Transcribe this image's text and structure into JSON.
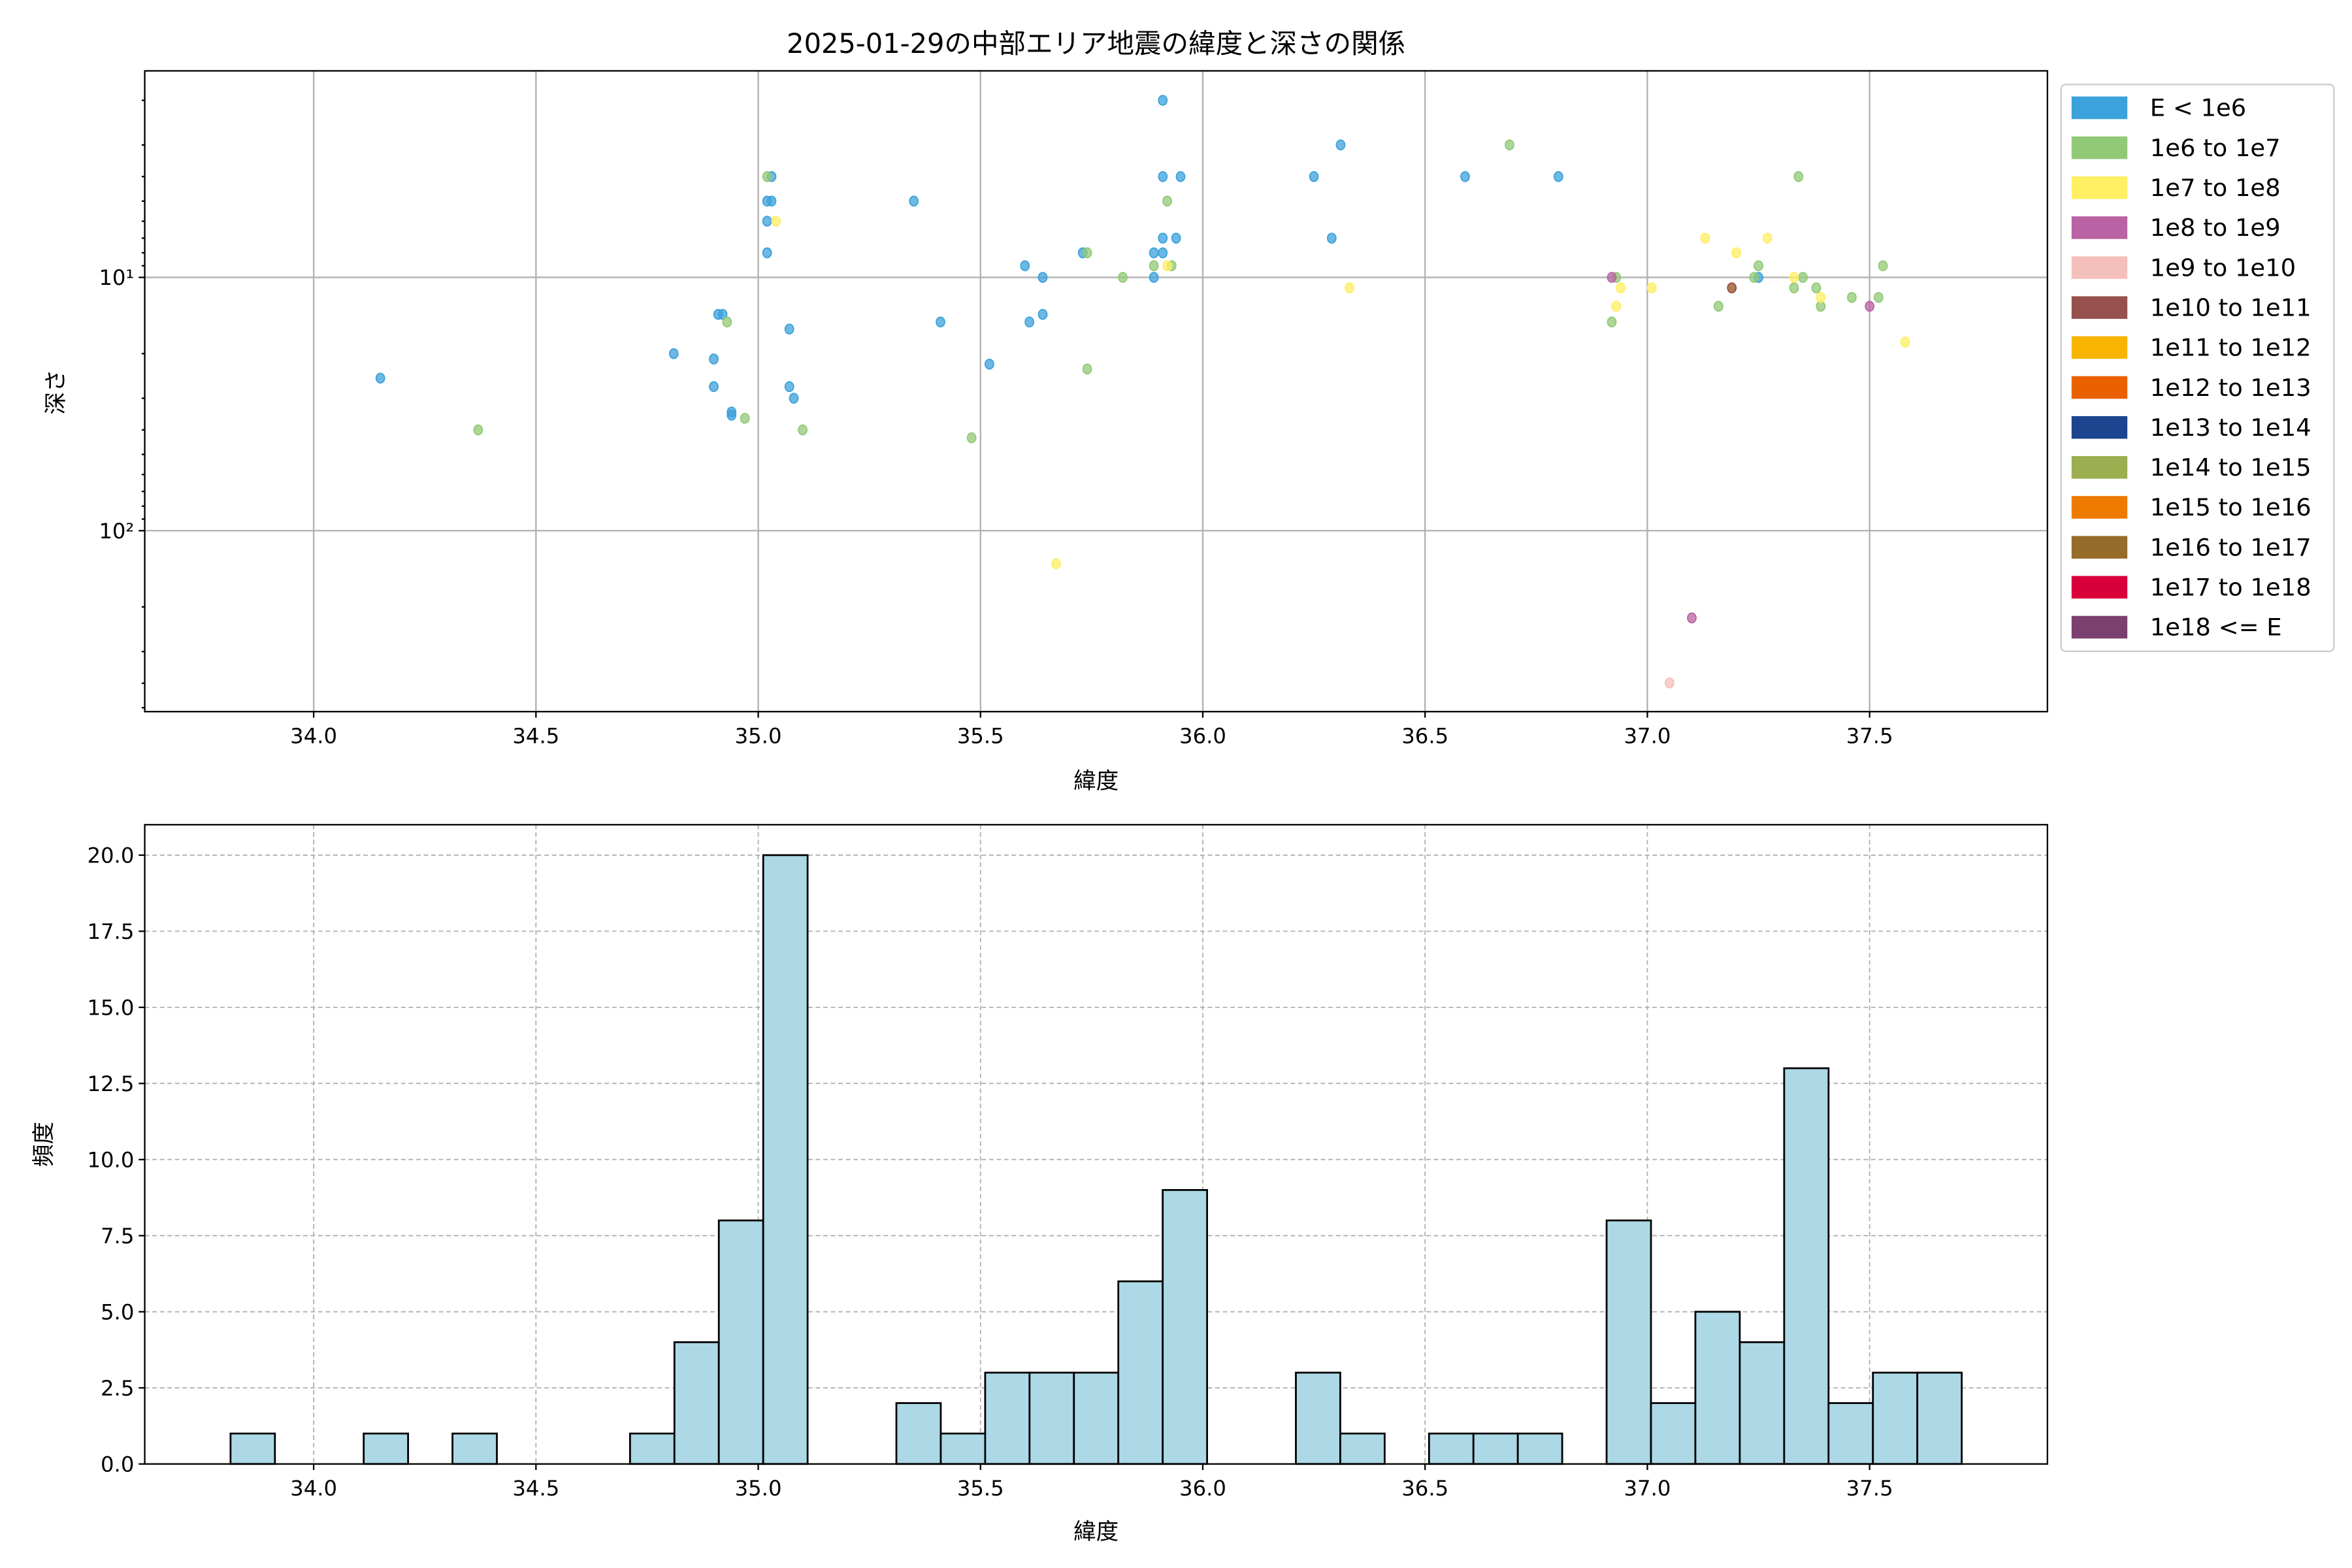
{
  "chart_data": [
    {
      "type": "scatter",
      "title": "2025-01-29の中部エリア地震の緯度と深さの関係",
      "xlabel": "緯度",
      "ylabel": "深さ",
      "xlim": [
        33.62,
        37.9
      ],
      "ylim": [
        518,
        1.53
      ],
      "yscale": "log",
      "y_inverted": true,
      "grid": true,
      "xticks": [
        "34.0",
        "34.5",
        "35.0",
        "35.5",
        "36.0",
        "36.5",
        "37.0",
        "37.5"
      ],
      "yticks": [
        {
          "value": 10,
          "label": "10¹"
        },
        {
          "value": 100,
          "label": "10²"
        }
      ],
      "legend_position": "outside-right",
      "legend": [
        {
          "label": "E < 1e6",
          "color": "#3CA2DB"
        },
        {
          "label": "1e6 to 1e7",
          "color": "#92C977"
        },
        {
          "label": "1e7 to 1e8",
          "color": "#FEEF63"
        },
        {
          "label": "1e8 to 1e9",
          "color": "#BA63A4"
        },
        {
          "label": "1e9 to 1e10",
          "color": "#F5C0BB"
        },
        {
          "label": "1e10 to 1e11",
          "color": "#96514C"
        },
        {
          "label": "1e11 to 1e12",
          "color": "#F7B500"
        },
        {
          "label": "1e12 to 1e13",
          "color": "#EA6200"
        },
        {
          "label": "1e13 to 1e14",
          "color": "#1B458F"
        },
        {
          "label": "1e14 to 1e15",
          "color": "#9BAE50"
        },
        {
          "label": "1e15 to 1e16",
          "color": "#EF7A00"
        },
        {
          "label": "1e16 to 1e17",
          "color": "#956C2A"
        },
        {
          "label": "1e17 to 1e18",
          "color": "#D9003A"
        },
        {
          "label": "1e18 <= E",
          "color": "#7B406F"
        }
      ],
      "series": [
        {
          "name": "E < 1e6",
          "points": [
            [
              34.15,
              25
            ],
            [
              34.81,
              20
            ],
            [
              34.9,
              21
            ],
            [
              34.9,
              27
            ],
            [
              34.91,
              14
            ],
            [
              34.92,
              14
            ],
            [
              34.94,
              34
            ],
            [
              34.94,
              35
            ],
            [
              35.07,
              16
            ],
            [
              35.07,
              27
            ],
            [
              35.08,
              30
            ],
            [
              35.03,
              4
            ],
            [
              35.02,
              5
            ],
            [
              35.03,
              5
            ],
            [
              35.02,
              6
            ],
            [
              35.02,
              8
            ],
            [
              35.35,
              5
            ],
            [
              35.41,
              15
            ],
            [
              35.52,
              22
            ],
            [
              35.6,
              9
            ],
            [
              35.61,
              15
            ],
            [
              35.64,
              10
            ],
            [
              35.64,
              14
            ],
            [
              35.73,
              8
            ],
            [
              35.89,
              10
            ],
            [
              35.89,
              8
            ],
            [
              35.91,
              8
            ],
            [
              35.91,
              7
            ],
            [
              35.94,
              7
            ],
            [
              35.91,
              4
            ],
            [
              35.91,
              2
            ],
            [
              35.95,
              4
            ],
            [
              36.25,
              4
            ],
            [
              36.31,
              3
            ],
            [
              36.29,
              7
            ],
            [
              36.59,
              4
            ],
            [
              36.8,
              4
            ],
            [
              37.25,
              10
            ]
          ]
        },
        {
          "name": "1e6 to 1e7",
          "points": [
            [
              34.37,
              40
            ],
            [
              34.93,
              15
            ],
            [
              34.97,
              36
            ],
            [
              35.1,
              40
            ],
            [
              35.48,
              43
            ],
            [
              35.74,
              23
            ],
            [
              35.74,
              8
            ],
            [
              35.82,
              10
            ],
            [
              35.89,
              9
            ],
            [
              35.92,
              5
            ],
            [
              35.93,
              9
            ],
            [
              36.69,
              3
            ],
            [
              36.93,
              10
            ],
            [
              36.92,
              15
            ],
            [
              37.16,
              13
            ],
            [
              37.24,
              10
            ],
            [
              37.25,
              9
            ],
            [
              37.33,
              11
            ],
            [
              37.35,
              10
            ],
            [
              37.34,
              4
            ],
            [
              37.39,
              13
            ],
            [
              37.38,
              11
            ],
            [
              37.46,
              12
            ],
            [
              37.52,
              12
            ],
            [
              37.53,
              9
            ],
            [
              35.02,
              4
            ]
          ]
        },
        {
          "name": "1e7 to 1e8",
          "points": [
            [
              35.04,
              6
            ],
            [
              35.92,
              9
            ],
            [
              35.67,
              135
            ],
            [
              36.33,
              11
            ],
            [
              36.93,
              13
            ],
            [
              36.94,
              11
            ],
            [
              37.01,
              11
            ],
            [
              37.13,
              7
            ],
            [
              37.2,
              8
            ],
            [
              37.27,
              7
            ],
            [
              37.33,
              10
            ],
            [
              37.39,
              12
            ],
            [
              37.58,
              18
            ],
            [
              37.19,
              11
            ]
          ]
        },
        {
          "name": "1e8 to 1e9",
          "points": [
            [
              36.92,
              10
            ],
            [
              37.5,
              13
            ],
            [
              37.1,
              221
            ]
          ]
        },
        {
          "name": "1e9 to 1e10",
          "points": [
            [
              37.05,
              399
            ]
          ]
        },
        {
          "name": "1e10 to 1e11",
          "points": [
            [
              37.19,
              11
            ]
          ]
        }
      ]
    },
    {
      "type": "bar",
      "subtype": "histogram",
      "xlabel": "緯度",
      "ylabel": "頻度",
      "xlim": [
        33.62,
        37.9
      ],
      "ylim": [
        0,
        21
      ],
      "grid": true,
      "bar_color": "#ADD8E6",
      "edge_color": "#000000",
      "xticks": [
        "34.0",
        "34.5",
        "35.0",
        "35.5",
        "36.0",
        "36.5",
        "37.0",
        "37.5"
      ],
      "yticks": [
        "0.0",
        "2.5",
        "5.0",
        "7.5",
        "10.0",
        "12.5",
        "15.0",
        "17.5",
        "20.0"
      ],
      "bin_start": 33.813,
      "bin_width": 0.09985,
      "counts": [
        1,
        0,
        0,
        1,
        0,
        1,
        0,
        0,
        0,
        1,
        4,
        8,
        20,
        0,
        0,
        2,
        1,
        3,
        3,
        3,
        6,
        9,
        0,
        0,
        3,
        1,
        0,
        1,
        1,
        1,
        0,
        8,
        2,
        5,
        4,
        13,
        2,
        3,
        3
      ]
    }
  ]
}
